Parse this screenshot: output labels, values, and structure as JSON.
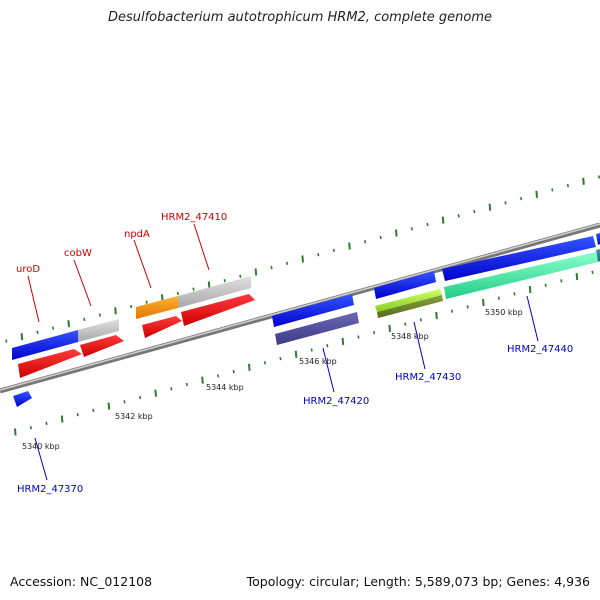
{
  "title": "Desulfobacterium autotrophicum HRM2, complete genome",
  "accession_label": "Accession: NC_012108",
  "summary": "Topology: circular; Length: 5,589,073 bp; Genes: 4,936",
  "colors": {
    "backbone": "#9a9a9a",
    "tick": "#2f7a2f",
    "forward_label": "#cc0000",
    "reverse_label": "#0000cc"
  },
  "scale_labels": [
    "5340 kbp",
    "5342 kbp",
    "5344 kbp",
    "5346 kbp",
    "5348 kbp",
    "5350 kbp"
  ],
  "gene_labels": {
    "top": [
      "uroD",
      "cobW",
      "npdA",
      "HRM2_47410"
    ],
    "bottom": [
      "HRM2_47370",
      "HRM2_47420",
      "HRM2_47430",
      "HRM2_47440"
    ]
  }
}
